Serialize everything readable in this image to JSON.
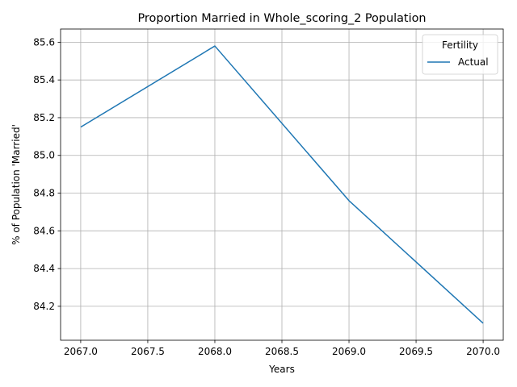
{
  "chart_data": {
    "type": "line",
    "title": "Proportion Married in Whole_scoring_2 Population",
    "xlabel": "Years",
    "ylabel": "% of Population 'Married'",
    "xlim": [
      2066.85,
      2070.15
    ],
    "ylim": [
      84.02,
      85.67
    ],
    "xticks": [
      "2067.0",
      "2067.5",
      "2068.0",
      "2068.5",
      "2069.0",
      "2069.5",
      "2070.0"
    ],
    "yticks": [
      "84.2",
      "84.4",
      "84.6",
      "84.8",
      "85.0",
      "85.2",
      "85.4",
      "85.6"
    ],
    "grid": true,
    "legend": {
      "title": "Fertility",
      "position": "top-right"
    },
    "series": [
      {
        "name": "Actual",
        "color": "#1f77b4",
        "x": [
          2067,
          2068,
          2069,
          2070
        ],
        "y": [
          85.15,
          85.58,
          84.76,
          84.11
        ]
      }
    ]
  }
}
